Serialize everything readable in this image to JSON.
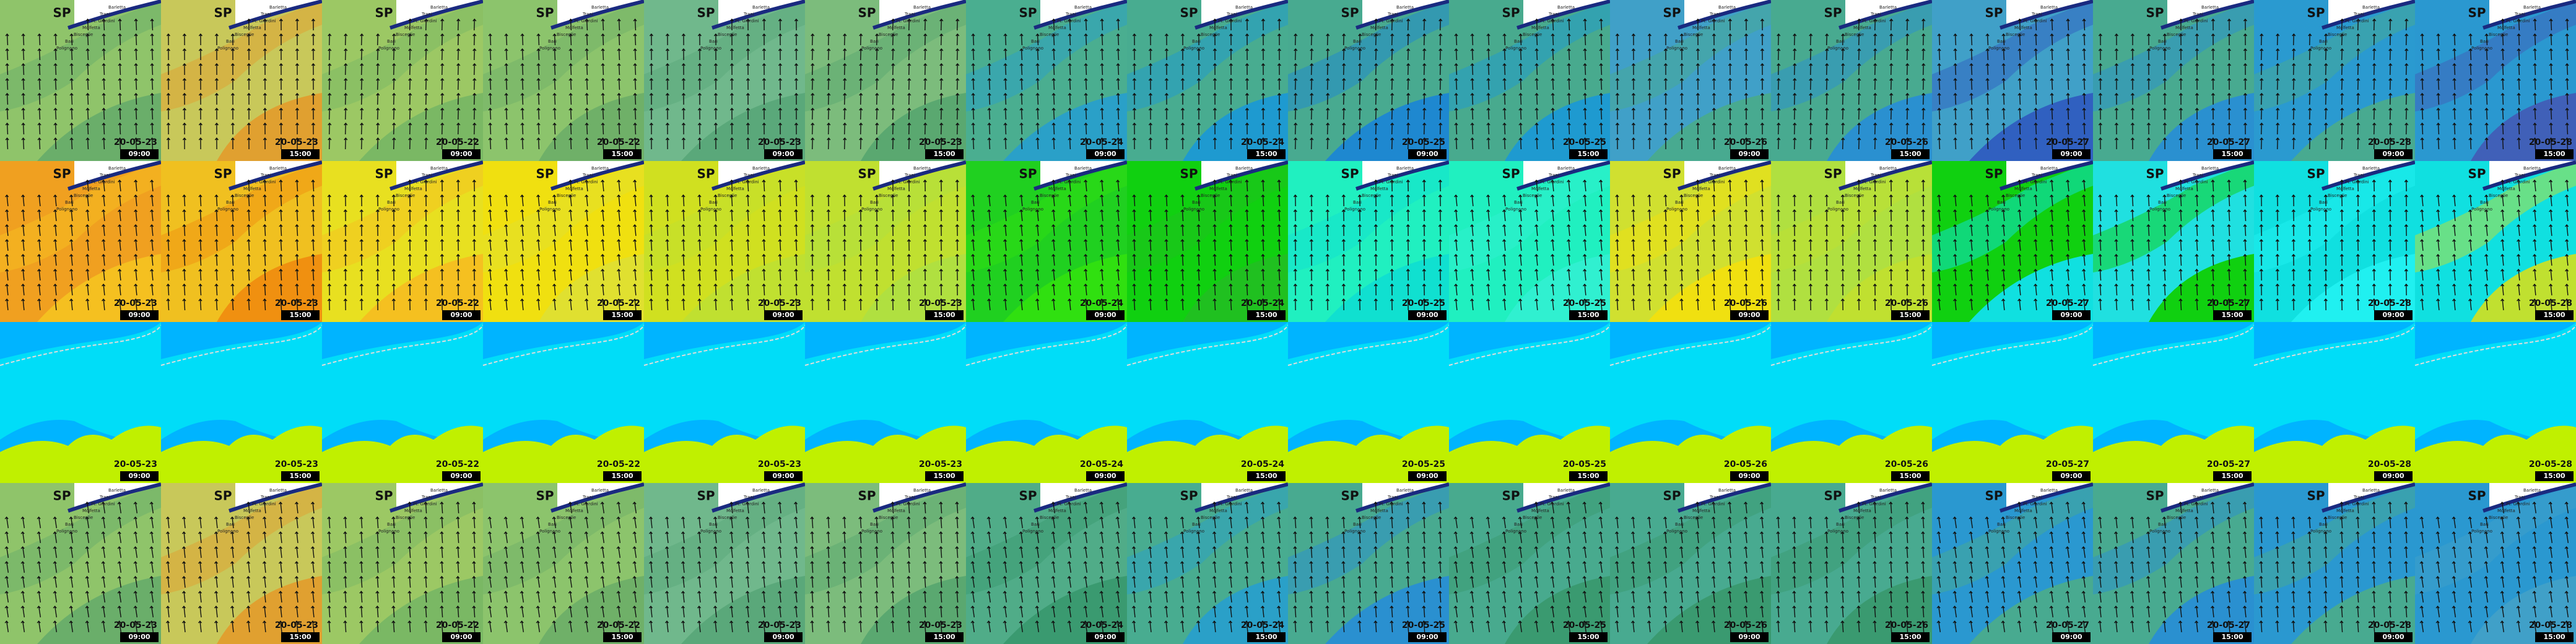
{
  "places": [
    "Barletta",
    "Trani",
    "Pt. Giardini",
    "Molfetta",
    "Bisceglie",
    "Bari",
    "Polignano"
  ],
  "columns": [
    {
      "date": "20-05-23",
      "time": "09:00"
    },
    {
      "date": "20-05-23",
      "time": "15:00"
    },
    {
      "date": "20-05-22",
      "time": "09:00"
    },
    {
      "date": "20-05-22",
      "time": "15:00"
    },
    {
      "date": "20-05-23",
      "time": "09:00"
    },
    {
      "date": "20-05-23",
      "time": "15:00"
    },
    {
      "date": "20-05-24",
      "time": "09:00"
    },
    {
      "date": "20-05-24",
      "time": "15:00"
    },
    {
      "date": "20-05-25",
      "time": "09:00"
    },
    {
      "date": "20-05-25",
      "time": "15:00"
    },
    {
      "date": "20-05-26",
      "time": "09:00"
    },
    {
      "date": "20-05-26",
      "time": "15:00"
    },
    {
      "date": "20-05-27",
      "time": "09:00"
    },
    {
      "date": "20-05-27",
      "time": "15:00"
    },
    {
      "date": "20-05-28",
      "time": "09:00"
    },
    {
      "date": "20-05-28",
      "time": "15:00"
    }
  ],
  "rows": [
    {
      "title": "SP"
    },
    {
      "title": "SP"
    },
    {},
    {
      "title": "SP"
    }
  ]
}
